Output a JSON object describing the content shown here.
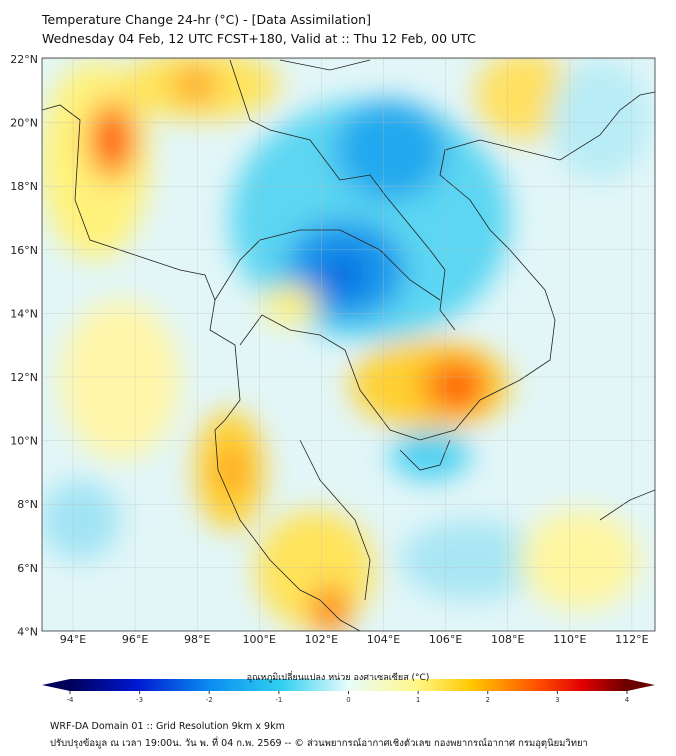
{
  "title": "Temperature Change 24-hr (°C) - [Data Assimilation]",
  "subtitle": "Wednesday 04 Feb, 12 UTC FCST+180, Valid at :: Thu 12 Feb, 00 UTC",
  "lat_labels": [
    "22°N",
    "20°N",
    "18°N",
    "16°N",
    "14°N",
    "12°N",
    "10°N",
    "8°N",
    "6°N",
    "4°N"
  ],
  "lon_labels": [
    "94°E",
    "96°E",
    "98°E",
    "100°E",
    "102°E",
    "104°E",
    "106°E",
    "108°E",
    "110°E",
    "112°E"
  ],
  "colorbar": {
    "caption": "อุณหภูมิเปลี่ยนแปลง หน่วย องศาเซลเซียส (°C)",
    "ticks": [
      "-4",
      "-3",
      "-2",
      "-1",
      "0",
      "1",
      "2",
      "3",
      "4"
    ],
    "colors": [
      "#00005a",
      "#0018d0",
      "#0a8cf0",
      "#30d0f0",
      "#e8fcfc",
      "#fff88a",
      "#ffc800",
      "#ff5000",
      "#e00000",
      "#6a0000"
    ]
  },
  "footer": {
    "line1": "WRF-DA Domain 01 :: Grid Resolution 9km x 9km",
    "line2": "ปรับปรุงข้อมูล ณ เวลา 19:00น. วัน พ. ที่ 04 ก.พ. 2569 -- © ส่วนพยากรณ์อากาศเชิงตัวเลข กองพยากรณ์อากาศ กรมอุตุนิยมวิทยา"
  }
}
